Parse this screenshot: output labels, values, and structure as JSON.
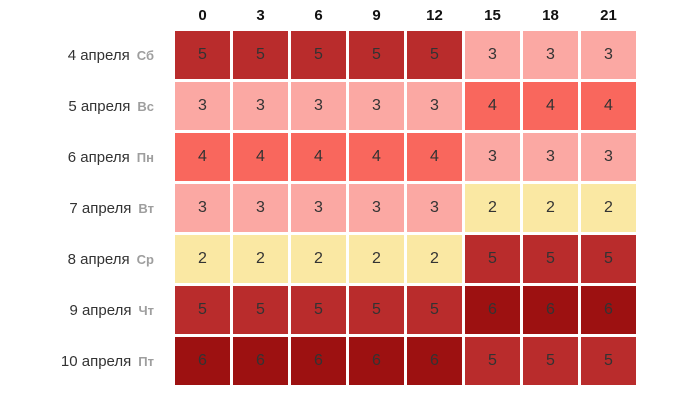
{
  "chart_data": {
    "type": "heatmap",
    "title": "",
    "xlabel": "",
    "ylabel": "",
    "hours": [
      "0",
      "3",
      "6",
      "9",
      "12",
      "15",
      "18",
      "21"
    ],
    "rows": [
      {
        "date": "4 апреля",
        "weekday": "Сб",
        "values": [
          5,
          5,
          5,
          5,
          5,
          3,
          3,
          3
        ]
      },
      {
        "date": "5 апреля",
        "weekday": "Вс",
        "values": [
          3,
          3,
          3,
          3,
          3,
          4,
          4,
          4
        ]
      },
      {
        "date": "6 апреля",
        "weekday": "Пн",
        "values": [
          4,
          4,
          4,
          4,
          4,
          3,
          3,
          3
        ]
      },
      {
        "date": "7 апреля",
        "weekday": "Вт",
        "values": [
          3,
          3,
          3,
          3,
          3,
          2,
          2,
          2
        ]
      },
      {
        "date": "8 апреля",
        "weekday": "Ср",
        "values": [
          2,
          2,
          2,
          2,
          2,
          5,
          5,
          5
        ]
      },
      {
        "date": "9 апреля",
        "weekday": "Чт",
        "values": [
          5,
          5,
          5,
          5,
          5,
          6,
          6,
          6
        ]
      },
      {
        "date": "10 апреля",
        "weekday": "Пт",
        "values": [
          6,
          6,
          6,
          6,
          6,
          5,
          5,
          5
        ]
      }
    ],
    "value_colors": {
      "2": "#FAE8A3",
      "3": "#FBA8A3",
      "4": "#F9675D",
      "5": "#B92C2C",
      "6": "#9D1111"
    },
    "cell_text_color": "#333333",
    "grid_gap_color": "#FFFFFF",
    "legend_position": "none",
    "grid": true
  }
}
